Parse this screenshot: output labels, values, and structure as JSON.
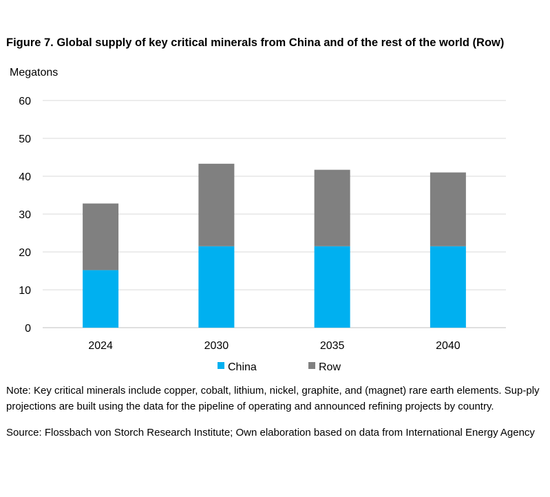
{
  "figure": {
    "title": "Figure 7. Global supply of key critical minerals from China and of the rest of the world (Row)",
    "note": "Note: Key critical minerals include copper, cobalt, lithium, nickel, graphite, and (magnet) rare earth elements. Sup-ply projections are built using the data for the pipeline of operating and announced refining projects by country.",
    "source": "Source: Flossbach von Storch Research Institute; Own elaboration based on data from International Energy Agency"
  },
  "colors": {
    "china": "#00B0F0",
    "row": "#808080",
    "grid": "#D9D9D9",
    "axis": "#BFBFBF"
  },
  "chart_data": {
    "type": "bar",
    "stacked": true,
    "title": "Figure 7. Global supply of key critical minerals from China and of the rest of the world (Row)",
    "ylabel": "Megatons",
    "xlabel": "",
    "ylim": [
      0,
      60
    ],
    "yticks": [
      0,
      10,
      20,
      30,
      40,
      50,
      60
    ],
    "grid": true,
    "legend": "bottom",
    "categories": [
      "2024",
      "2030",
      "2035",
      "2040"
    ],
    "series": [
      {
        "name": "China",
        "values": [
          15.2,
          21.5,
          21.5,
          21.5
        ]
      },
      {
        "name": "Row",
        "values": [
          17.6,
          21.8,
          20.2,
          19.5
        ]
      }
    ]
  }
}
